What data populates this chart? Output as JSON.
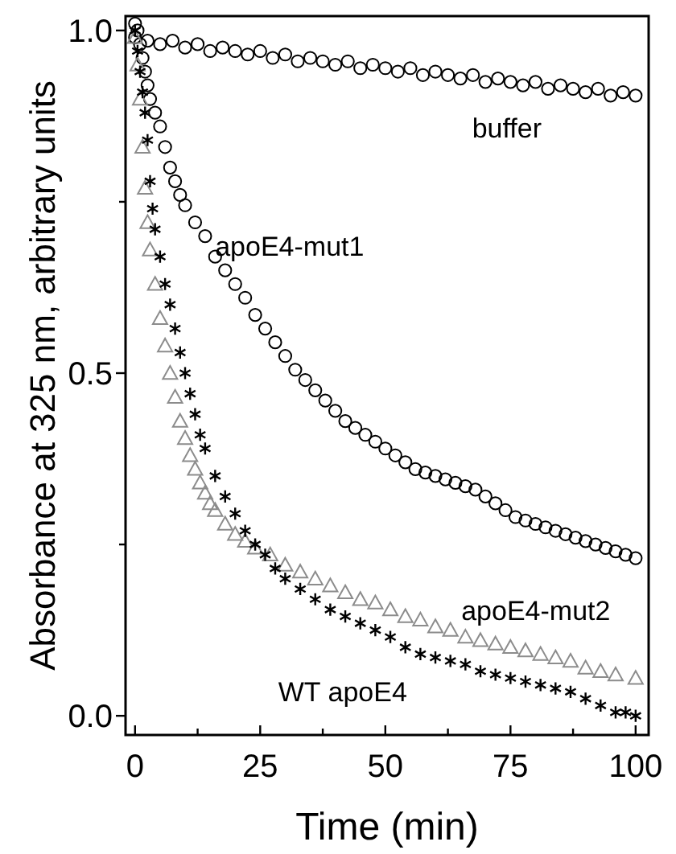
{
  "chart_data": {
    "type": "scatter",
    "xlabel": "Time (min)",
    "ylabel": "Absorbance at 325 nm, arbitrary units",
    "xlim": [
      -1.9,
      102.6
    ],
    "ylim": [
      -0.028,
      1.021
    ],
    "xticks": [
      0,
      {
        "value": 12.5,
        "label": null
      },
      25,
      {
        "value": 37.5,
        "label": null
      },
      50,
      {
        "value": 62.5,
        "label": null
      },
      75,
      {
        "value": 87.5,
        "label": null
      },
      100
    ],
    "yticks": [
      {
        "value": 0,
        "label": "0.0"
      },
      {
        "value": 0.25,
        "label": null
      },
      {
        "value": 0.5,
        "label": "0.5"
      },
      {
        "value": 0.75,
        "label": null
      },
      {
        "value": 1,
        "label": "1.0"
      }
    ],
    "grid": false,
    "legend": false,
    "series": [
      {
        "name": "buffer",
        "color": "#000000",
        "marker": "circle",
        "x": [
          0,
          2.5,
          5,
          7.5,
          10,
          12.5,
          15,
          17.5,
          20,
          22.5,
          25,
          27.5,
          30,
          32.5,
          35,
          37.5,
          40,
          42.5,
          45,
          47.5,
          50,
          52.5,
          55,
          57.5,
          60,
          62.5,
          65,
          67.5,
          70,
          72.5,
          75,
          77.5,
          80,
          82.5,
          85,
          87.5,
          90,
          92.5,
          95,
          97.5,
          100
        ],
        "values": [
          0.99,
          0.985,
          0.98,
          0.985,
          0.975,
          0.98,
          0.97,
          0.975,
          0.97,
          0.965,
          0.97,
          0.96,
          0.965,
          0.955,
          0.96,
          0.955,
          0.95,
          0.955,
          0.945,
          0.95,
          0.945,
          0.94,
          0.945,
          0.935,
          0.94,
          0.935,
          0.93,
          0.935,
          0.925,
          0.93,
          0.925,
          0.92,
          0.925,
          0.915,
          0.92,
          0.915,
          0.91,
          0.915,
          0.905,
          0.91,
          0.905
        ]
      },
      {
        "name": "apoE4-mut1",
        "color": "#000000",
        "marker": "circle",
        "x": [
          0,
          0.5,
          1,
          1.5,
          2,
          2.5,
          3,
          4,
          5,
          6,
          7,
          8,
          9,
          10,
          12,
          14,
          16,
          18,
          20,
          22,
          24,
          26,
          28,
          30,
          32,
          34,
          36,
          38,
          40,
          42,
          44,
          46,
          48,
          50,
          52,
          54,
          56,
          58,
          60,
          62,
          64,
          66,
          68,
          70,
          72,
          74,
          76,
          78,
          80,
          82,
          84,
          86,
          88,
          90,
          92,
          94,
          96,
          98,
          100
        ],
        "values": [
          1.01,
          1.0,
          0.98,
          0.96,
          0.94,
          0.92,
          0.9,
          0.88,
          0.86,
          0.83,
          0.8,
          0.78,
          0.76,
          0.745,
          0.72,
          0.7,
          0.67,
          0.65,
          0.63,
          0.61,
          0.585,
          0.565,
          0.545,
          0.525,
          0.505,
          0.49,
          0.475,
          0.46,
          0.445,
          0.43,
          0.42,
          0.41,
          0.4,
          0.39,
          0.38,
          0.37,
          0.36,
          0.355,
          0.35,
          0.345,
          0.34,
          0.335,
          0.33,
          0.32,
          0.31,
          0.3,
          0.29,
          0.285,
          0.28,
          0.275,
          0.27,
          0.265,
          0.26,
          0.255,
          0.25,
          0.245,
          0.24,
          0.235,
          0.23
        ]
      },
      {
        "name": "apoE4-mut2",
        "color": "#8c8c8c",
        "marker": "triangle",
        "x": [
          0,
          0.5,
          1,
          1.5,
          2,
          2.5,
          3,
          4,
          5,
          6,
          7,
          8,
          9,
          10,
          11,
          12,
          13,
          14,
          15,
          16,
          18,
          20,
          22,
          24,
          27,
          30,
          33,
          36,
          39,
          42,
          45,
          48,
          51,
          54,
          57,
          60,
          63,
          66,
          69,
          72,
          75,
          78,
          81,
          84,
          87,
          90,
          93,
          96,
          100
        ],
        "values": [
          0.99,
          0.95,
          0.9,
          0.83,
          0.77,
          0.72,
          0.68,
          0.63,
          0.58,
          0.54,
          0.5,
          0.465,
          0.43,
          0.405,
          0.38,
          0.36,
          0.34,
          0.325,
          0.31,
          0.3,
          0.28,
          0.265,
          0.255,
          0.245,
          0.235,
          0.22,
          0.21,
          0.2,
          0.19,
          0.18,
          0.17,
          0.165,
          0.155,
          0.145,
          0.14,
          0.13,
          0.125,
          0.115,
          0.11,
          0.105,
          0.1,
          0.095,
          0.09,
          0.085,
          0.08,
          0.07,
          0.065,
          0.06,
          0.055
        ]
      },
      {
        "name": "WT apoE4",
        "color": "#000000",
        "marker": "cross",
        "x": [
          0,
          0.5,
          1,
          1.5,
          2,
          2.5,
          3,
          3.5,
          4,
          5,
          6,
          7,
          8,
          9,
          10,
          11,
          12,
          13,
          14,
          16,
          18,
          20,
          22,
          24,
          26,
          28,
          30,
          33,
          36,
          39,
          42,
          45,
          48,
          51,
          54,
          57,
          60,
          63,
          66,
          69,
          72,
          75,
          78,
          81,
          84,
          87,
          90,
          93,
          96,
          98,
          100
        ],
        "values": [
          1.0,
          0.97,
          0.94,
          0.91,
          0.88,
          0.84,
          0.78,
          0.74,
          0.71,
          0.67,
          0.63,
          0.6,
          0.565,
          0.53,
          0.5,
          0.47,
          0.44,
          0.41,
          0.39,
          0.35,
          0.32,
          0.295,
          0.27,
          0.25,
          0.235,
          0.215,
          0.2,
          0.185,
          0.17,
          0.155,
          0.145,
          0.135,
          0.125,
          0.115,
          0.1,
          0.09,
          0.085,
          0.08,
          0.075,
          0.065,
          0.06,
          0.055,
          0.05,
          0.045,
          0.04,
          0.035,
          0.025,
          0.015,
          0.005,
          0.005,
          0.0
        ]
      }
    ]
  }
}
